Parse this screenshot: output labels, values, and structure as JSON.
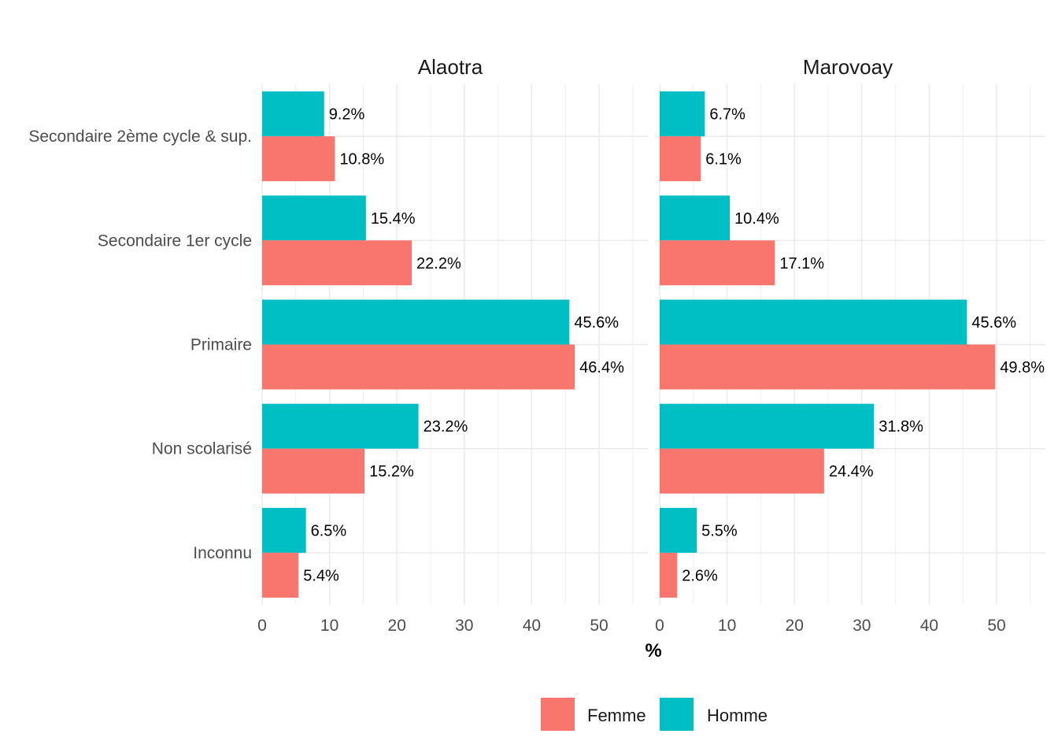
{
  "chart_data": {
    "type": "bar",
    "orientation": "horizontal",
    "categories": [
      "Secondaire 2ème cycle & sup.",
      "Secondaire 1er cycle",
      "Primaire",
      "Non scolarisé",
      "Inconnu"
    ],
    "xlabel": "%",
    "ylabel": "",
    "xlim": [
      0,
      57
    ],
    "xticks": [
      "0",
      "10",
      "20",
      "30",
      "40",
      "50"
    ],
    "grid": true,
    "legend": {
      "position": "bottom",
      "entries": [
        "Femme",
        "Homme"
      ]
    },
    "colors": {
      "Femme": "#F8766D",
      "Homme": "#00BFC4"
    },
    "panels": [
      {
        "title": "Alaotra",
        "series": [
          {
            "name": "Homme",
            "values": [
              9.2,
              15.4,
              45.6,
              23.2,
              6.5
            ],
            "labels": [
              "9.2%",
              "15.4%",
              "45.6%",
              "23.2%",
              "6.5%"
            ]
          },
          {
            "name": "Femme",
            "values": [
              10.8,
              22.2,
              46.4,
              15.2,
              5.4
            ],
            "labels": [
              "10.8%",
              "22.2%",
              "46.4%",
              "15.2%",
              "5.4%"
            ]
          }
        ]
      },
      {
        "title": "Marovoay",
        "series": [
          {
            "name": "Homme",
            "values": [
              6.7,
              10.4,
              45.6,
              31.8,
              5.5
            ],
            "labels": [
              "6.7%",
              "10.4%",
              "45.6%",
              "31.8%",
              "5.5%"
            ]
          },
          {
            "name": "Femme",
            "values": [
              6.1,
              17.1,
              49.8,
              24.4,
              2.6
            ],
            "labels": [
              "6.1%",
              "17.1%",
              "49.8%",
              "24.4%",
              "2.6%"
            ]
          }
        ]
      }
    ]
  }
}
